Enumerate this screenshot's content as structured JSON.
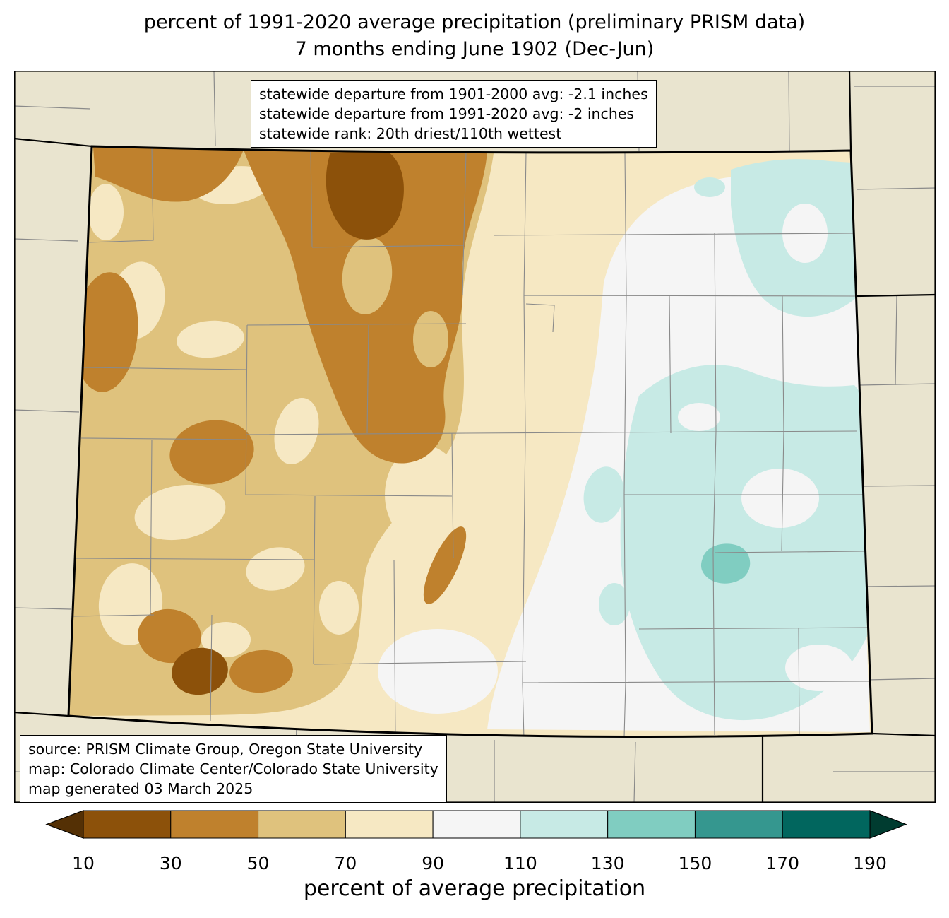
{
  "title": {
    "line1": "percent of 1991-2020 average precipitation (preliminary PRISM data)",
    "line2": "7 months ending June 1902 (Dec-Jun)"
  },
  "stats_box": {
    "lines": [
      "statewide departure from 1901-2000 avg: -2.1 inches",
      "statewide departure from 1991-2020 avg: -2 inches",
      "statewide rank: 20th driest/110th wettest"
    ]
  },
  "source_box": {
    "lines": [
      "source: PRISM Climate Group, Oregon State University",
      "map: Colorado Climate Center/Colorado State University",
      "map generated 03 March 2025"
    ]
  },
  "colorbar": {
    "label": "percent of average precipitation",
    "ticks": [
      "10",
      "30",
      "50",
      "70",
      "90",
      "110",
      "130",
      "150",
      "170",
      "190"
    ],
    "segment_colors": [
      "#8c510a",
      "#bf812d",
      "#dfc27d",
      "#f6e8c3",
      "#f5f5f5",
      "#c7eae5",
      "#80cdc1",
      "#35978f",
      "#01665e"
    ],
    "under_range_color": "#543005",
    "over_range_color": "#003c30"
  },
  "map": {
    "palette": {
      "pct_lt_10": "#543005",
      "pct_10_30": "#8c510a",
      "pct_30_50": "#bf812d",
      "pct_50_70": "#dfc27d",
      "pct_70_90": "#f6e8c3",
      "pct_90_110": "#f5f5f5",
      "pct_110_130": "#c7eae5",
      "pct_130_150": "#80cdc1",
      "pct_150_170": "#35978f",
      "pct_170_190": "#01665e",
      "pct_gt_190": "#003c30",
      "outside_state": "#e9e4cf",
      "county_line": "#8a8a8a",
      "state_border": "#000000"
    }
  }
}
